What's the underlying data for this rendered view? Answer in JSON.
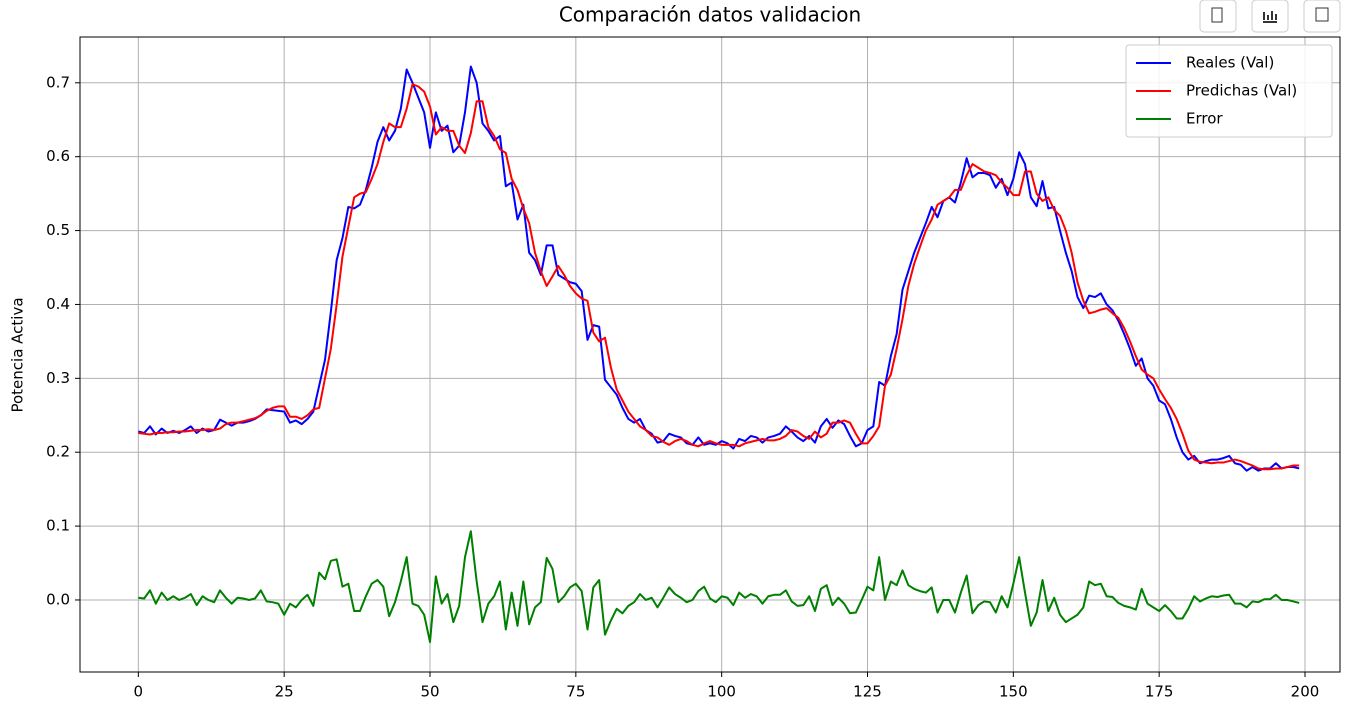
{
  "chart_data": {
    "type": "line",
    "title": "Comparación datos validacion",
    "ylabel": "Potencia Activa",
    "x": [
      0,
      1,
      2,
      3,
      4,
      5,
      6,
      7,
      8,
      9,
      10,
      11,
      12,
      13,
      14,
      15,
      16,
      17,
      18,
      19,
      20,
      21,
      22,
      23,
      24,
      25,
      26,
      27,
      28,
      29,
      30,
      31,
      32,
      33,
      34,
      35,
      36,
      37,
      38,
      39,
      40,
      41,
      42,
      43,
      44,
      45,
      46,
      47,
      48,
      49,
      50,
      51,
      52,
      53,
      54,
      55,
      56,
      57,
      58,
      59,
      60,
      61,
      62,
      63,
      64,
      65,
      66,
      67,
      68,
      69,
      70,
      71,
      72,
      73,
      74,
      75,
      76,
      77,
      78,
      79,
      80,
      81,
      82,
      83,
      84,
      85,
      86,
      87,
      88,
      89,
      90,
      91,
      92,
      93,
      94,
      95,
      96,
      97,
      98,
      99,
      100,
      101,
      102,
      103,
      104,
      105,
      106,
      107,
      108,
      109,
      110,
      111,
      112,
      113,
      114,
      115,
      116,
      117,
      118,
      119,
      120,
      121,
      122,
      123,
      124,
      125,
      126,
      127,
      128,
      129,
      130,
      131,
      132,
      133,
      134,
      135,
      136,
      137,
      138,
      139,
      140,
      141,
      142,
      143,
      144,
      145,
      146,
      147,
      148,
      149,
      150,
      151,
      152,
      153,
      154,
      155,
      156,
      157,
      158,
      159,
      160,
      161,
      162,
      163,
      164,
      165,
      166,
      167,
      168,
      169,
      170,
      171,
      172,
      173,
      174,
      175,
      176,
      177,
      178,
      179,
      180,
      181,
      182,
      183,
      184,
      185,
      186,
      187,
      188,
      189,
      190,
      191,
      192,
      193,
      194,
      195,
      196,
      197,
      198,
      199
    ],
    "series": [
      {
        "name": "Reales (Val)",
        "color": "#0000ff",
        "values": [
          0.228,
          0.226,
          0.235,
          0.224,
          0.232,
          0.226,
          0.229,
          0.226,
          0.23,
          0.235,
          0.226,
          0.232,
          0.228,
          0.23,
          0.244,
          0.24,
          0.236,
          0.24,
          0.24,
          0.242,
          0.245,
          0.25,
          0.258,
          0.257,
          0.256,
          0.255,
          0.24,
          0.243,
          0.238,
          0.245,
          0.255,
          0.29,
          0.325,
          0.39,
          0.46,
          0.49,
          0.532,
          0.53,
          0.535,
          0.555,
          0.585,
          0.62,
          0.64,
          0.622,
          0.635,
          0.665,
          0.718,
          0.7,
          0.68,
          0.66,
          0.612,
          0.66,
          0.635,
          0.642,
          0.606,
          0.615,
          0.66,
          0.722,
          0.7,
          0.645,
          0.635,
          0.622,
          0.628,
          0.56,
          0.565,
          0.515,
          0.535,
          0.47,
          0.46,
          0.44,
          0.48,
          0.48,
          0.44,
          0.435,
          0.43,
          0.428,
          0.418,
          0.352,
          0.372,
          0.37,
          0.298,
          0.288,
          0.278,
          0.26,
          0.245,
          0.24,
          0.245,
          0.23,
          0.225,
          0.213,
          0.215,
          0.225,
          0.222,
          0.22,
          0.212,
          0.21,
          0.22,
          0.21,
          0.212,
          0.21,
          0.215,
          0.212,
          0.205,
          0.218,
          0.215,
          0.222,
          0.22,
          0.213,
          0.22,
          0.222,
          0.225,
          0.235,
          0.228,
          0.22,
          0.215,
          0.222,
          0.213,
          0.235,
          0.245,
          0.233,
          0.243,
          0.238,
          0.222,
          0.208,
          0.212,
          0.23,
          0.235,
          0.295,
          0.29,
          0.33,
          0.36,
          0.42,
          0.445,
          0.47,
          0.49,
          0.51,
          0.532,
          0.518,
          0.54,
          0.545,
          0.538,
          0.565,
          0.598,
          0.572,
          0.578,
          0.578,
          0.575,
          0.558,
          0.57,
          0.548,
          0.57,
          0.606,
          0.59,
          0.545,
          0.533,
          0.567,
          0.53,
          0.532,
          0.5,
          0.47,
          0.445,
          0.41,
          0.395,
          0.412,
          0.41,
          0.415,
          0.4,
          0.392,
          0.378,
          0.36,
          0.34,
          0.317,
          0.327,
          0.3,
          0.29,
          0.27,
          0.265,
          0.245,
          0.22,
          0.2,
          0.19,
          0.195,
          0.185,
          0.188,
          0.19,
          0.19,
          0.192,
          0.195,
          0.185,
          0.183,
          0.175,
          0.18,
          0.175,
          0.178,
          0.178,
          0.185,
          0.178,
          0.18,
          0.18,
          0.178
        ]
      },
      {
        "name": "Predichas (Val)",
        "color": "#ff0000",
        "values": [
          0.226,
          0.225,
          0.224,
          0.226,
          0.226,
          0.227,
          0.227,
          0.228,
          0.228,
          0.229,
          0.23,
          0.23,
          0.231,
          0.23,
          0.232,
          0.238,
          0.24,
          0.24,
          0.242,
          0.244,
          0.246,
          0.25,
          0.256,
          0.26,
          0.262,
          0.262,
          0.248,
          0.248,
          0.245,
          0.25,
          0.258,
          0.26,
          0.3,
          0.34,
          0.4,
          0.465,
          0.505,
          0.545,
          0.55,
          0.552,
          0.57,
          0.59,
          0.62,
          0.645,
          0.64,
          0.64,
          0.665,
          0.698,
          0.695,
          0.688,
          0.668,
          0.63,
          0.64,
          0.635,
          0.635,
          0.615,
          0.605,
          0.632,
          0.675,
          0.675,
          0.64,
          0.628,
          0.61,
          0.605,
          0.57,
          0.555,
          0.53,
          0.51,
          0.47,
          0.445,
          0.425,
          0.438,
          0.452,
          0.44,
          0.425,
          0.415,
          0.408,
          0.405,
          0.362,
          0.35,
          0.355,
          0.315,
          0.285,
          0.27,
          0.255,
          0.245,
          0.235,
          0.23,
          0.222,
          0.22,
          0.214,
          0.21,
          0.215,
          0.218,
          0.215,
          0.21,
          0.208,
          0.212,
          0.215,
          0.212,
          0.21,
          0.21,
          0.21,
          0.208,
          0.212,
          0.214,
          0.216,
          0.218,
          0.216,
          0.216,
          0.218,
          0.222,
          0.23,
          0.228,
          0.222,
          0.218,
          0.228,
          0.22,
          0.225,
          0.24,
          0.24,
          0.243,
          0.24,
          0.225,
          0.212,
          0.212,
          0.222,
          0.235,
          0.29,
          0.305,
          0.34,
          0.38,
          0.425,
          0.455,
          0.478,
          0.5,
          0.515,
          0.535,
          0.54,
          0.545,
          0.555,
          0.555,
          0.575,
          0.59,
          0.585,
          0.58,
          0.578,
          0.575,
          0.565,
          0.558,
          0.548,
          0.548,
          0.58,
          0.58,
          0.55,
          0.54,
          0.545,
          0.528,
          0.52,
          0.5,
          0.47,
          0.43,
          0.405,
          0.388,
          0.39,
          0.393,
          0.395,
          0.388,
          0.382,
          0.368,
          0.35,
          0.33,
          0.312,
          0.305,
          0.3,
          0.285,
          0.272,
          0.26,
          0.245,
          0.225,
          0.202,
          0.19,
          0.187,
          0.186,
          0.185,
          0.186,
          0.186,
          0.188,
          0.19,
          0.188,
          0.185,
          0.182,
          0.178,
          0.177,
          0.177,
          0.178,
          0.178,
          0.18,
          0.182,
          0.182
        ]
      },
      {
        "name": "Error",
        "color": "#008000",
        "values": [
          0.003,
          0.002,
          0.013,
          -0.005,
          0.01,
          0.0,
          0.005,
          0.0,
          0.003,
          0.008,
          -0.007,
          0.005,
          0.0,
          -0.003,
          0.013,
          0.003,
          -0.005,
          0.003,
          0.002,
          0.0,
          0.002,
          0.013,
          -0.002,
          -0.003,
          -0.005,
          -0.02,
          -0.005,
          -0.01,
          0.0,
          0.007,
          -0.008,
          0.037,
          0.028,
          0.053,
          0.055,
          0.018,
          0.022,
          -0.015,
          -0.015,
          0.005,
          0.022,
          0.027,
          0.018,
          -0.022,
          -0.003,
          0.025,
          0.058,
          -0.005,
          -0.008,
          -0.02,
          -0.057,
          0.032,
          -0.005,
          0.008,
          -0.03,
          -0.008,
          0.058,
          0.093,
          0.025,
          -0.03,
          -0.005,
          0.005,
          0.025,
          -0.04,
          0.01,
          -0.035,
          0.025,
          -0.033,
          -0.01,
          -0.003,
          0.057,
          0.042,
          -0.003,
          0.005,
          0.017,
          0.022,
          0.012,
          -0.04,
          0.017,
          0.027,
          -0.047,
          -0.028,
          -0.012,
          -0.018,
          -0.008,
          -0.003,
          0.008,
          0.0,
          0.003,
          -0.01,
          0.003,
          0.017,
          0.008,
          0.003,
          -0.003,
          0.0,
          0.012,
          0.018,
          0.002,
          -0.003,
          0.005,
          0.003,
          -0.007,
          0.01,
          0.003,
          0.008,
          0.005,
          -0.005,
          0.005,
          0.007,
          0.007,
          0.013,
          -0.002,
          -0.008,
          -0.007,
          0.005,
          -0.015,
          0.015,
          0.02,
          -0.007,
          0.003,
          -0.005,
          -0.018,
          -0.017,
          0.0,
          0.018,
          0.013,
          0.058,
          0.0,
          0.025,
          0.02,
          0.04,
          0.02,
          0.015,
          0.012,
          0.01,
          0.017,
          -0.017,
          0.0,
          0.0,
          -0.017,
          0.01,
          0.033,
          -0.018,
          -0.007,
          -0.002,
          -0.003,
          -0.017,
          0.005,
          -0.01,
          0.022,
          0.058,
          0.01,
          -0.035,
          -0.017,
          0.027,
          -0.015,
          0.003,
          -0.02,
          -0.03,
          -0.025,
          -0.02,
          -0.01,
          0.025,
          0.02,
          0.022,
          0.005,
          0.004,
          -0.004,
          -0.008,
          -0.01,
          -0.013,
          0.015,
          -0.005,
          -0.01,
          -0.015,
          -0.007,
          -0.015,
          -0.025,
          -0.025,
          -0.012,
          0.005,
          -0.002,
          0.002,
          0.005,
          0.004,
          0.006,
          0.007,
          -0.005,
          -0.005,
          -0.01,
          -0.002,
          -0.003,
          0.001,
          0.001,
          0.007,
          0.0,
          0.0,
          -0.002,
          -0.004
        ]
      }
    ],
    "xlim": [
      -10,
      206
    ],
    "xticks": [
      0,
      25,
      50,
      75,
      100,
      125,
      150,
      175,
      200
    ],
    "ylim": [
      -0.0975,
      0.762
    ],
    "yticks": [
      {
        "value": 0,
        "label": "0.0"
      },
      0.1,
      0.2,
      0.3,
      0.4,
      0.5,
      0.6,
      0.7
    ],
    "grid": true,
    "legend": "upper-right"
  }
}
